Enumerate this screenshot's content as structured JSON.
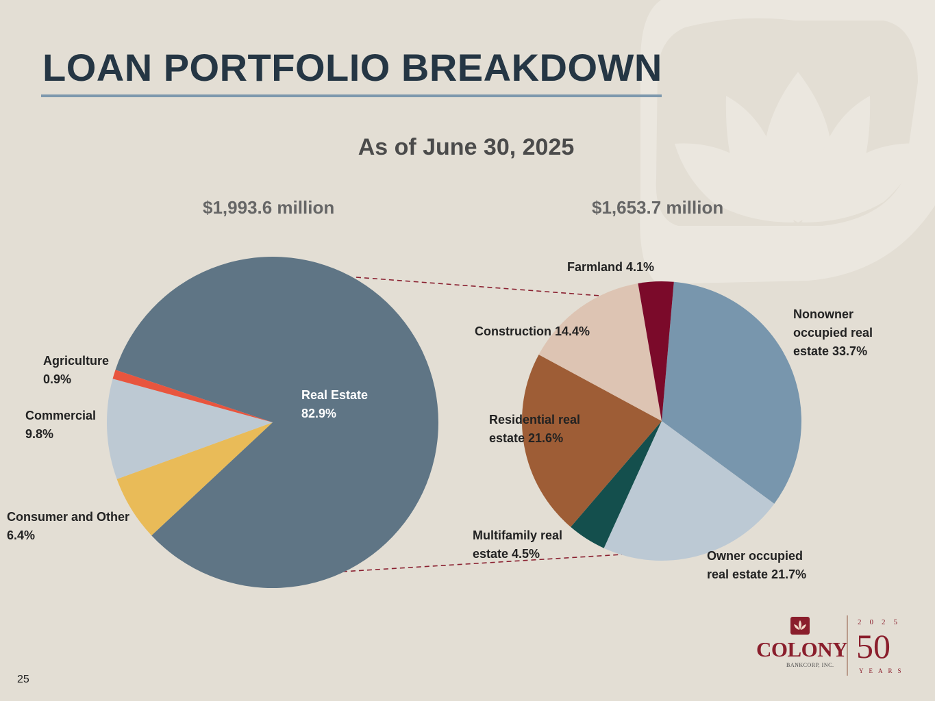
{
  "slide": {
    "title": "LOAN PORTFOLIO BREAKDOWN",
    "subtitle": "As of June 30, 2025",
    "page_number": "25"
  },
  "colors": {
    "background": "#e3ded4",
    "title": "#253644",
    "rule": "#7d98ad",
    "connector": "#8a2030"
  },
  "logo": {
    "word": "COLONY",
    "sub": "BANKCORP, INC.",
    "year": "2025",
    "anniversary": "50",
    "years_word": "YEARS"
  },
  "chart_data": [
    {
      "type": "pie",
      "total_label": "$1,993.6 million",
      "slices": [
        {
          "label": "Real Estate\n82.9%",
          "name": "Real Estate",
          "value": 82.9,
          "color": "#5f7585"
        },
        {
          "label": "Consumer and Other\n6.4%",
          "name": "Consumer and Other",
          "value": 6.4,
          "color": "#e9bb58"
        },
        {
          "label": "Commercial\n9.8%",
          "name": "Commercial",
          "value": 9.8,
          "color": "#bdc9d3"
        },
        {
          "label": "Agriculture\n0.9%",
          "name": "Agriculture",
          "value": 0.9,
          "color": "#e8553e"
        }
      ]
    },
    {
      "type": "pie",
      "total_label": "$1,653.7 million",
      "slices": [
        {
          "label": "Nonowner\noccupied real\nestate  33.7%",
          "name": "Nonowner occupied real estate",
          "value": 33.7,
          "color": "#7896ad"
        },
        {
          "label": "Owner occupied\nreal estate 21.7%",
          "name": "Owner occupied real estate",
          "value": 21.7,
          "color": "#bcc9d4"
        },
        {
          "label": "Multifamily real\nestate 4.5%",
          "name": "Multifamily real estate",
          "value": 4.5,
          "color": "#144f4d"
        },
        {
          "label": "Residential real\nestate 21.6%",
          "name": "Residential real estate",
          "value": 21.6,
          "color": "#9e5d36"
        },
        {
          "label": "Construction 14.4%",
          "name": "Construction",
          "value": 14.4,
          "color": "#ddc4b3"
        },
        {
          "label": "Farmland 4.1%",
          "name": "Farmland",
          "value": 4.1,
          "color": "#7b0a2a"
        }
      ]
    }
  ]
}
